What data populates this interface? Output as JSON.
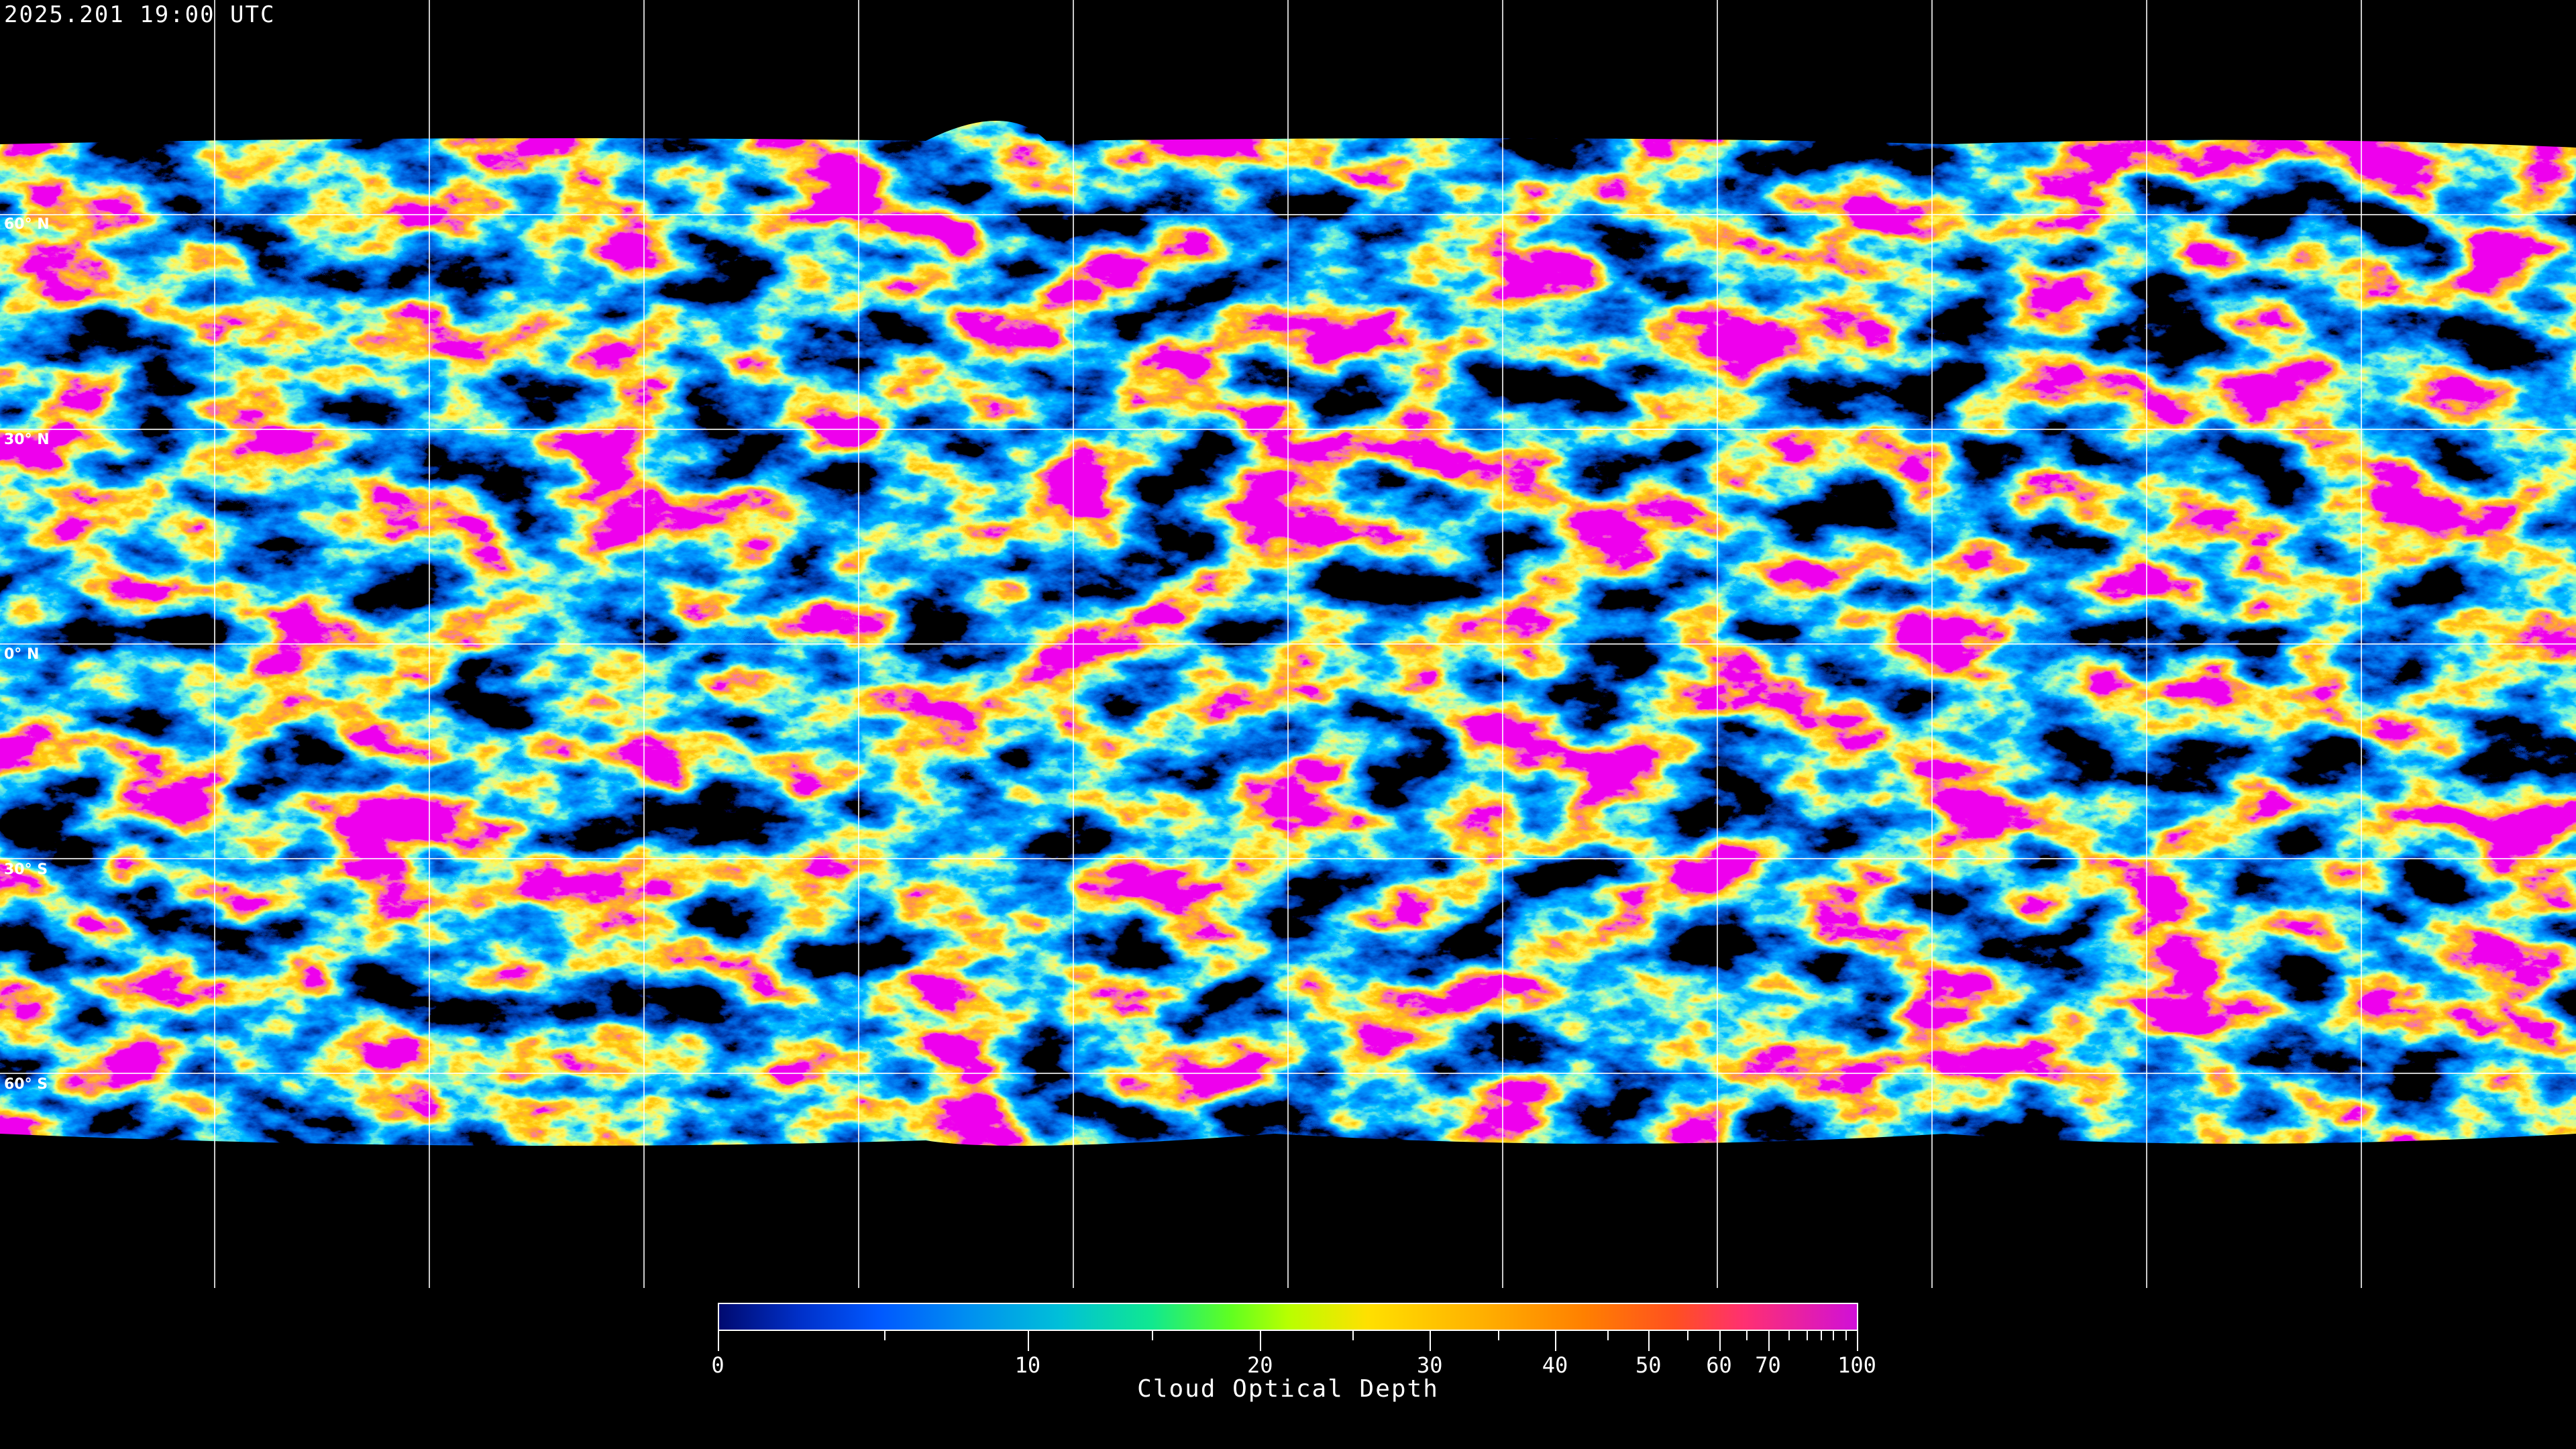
{
  "header": {
    "timestamp": "2025.201 19:00 UTC"
  },
  "map": {
    "projection": "equirectangular",
    "grid_spacing_degrees": 30,
    "latitude_labels": [
      "60° N",
      "30° N",
      "0° N",
      "30° S",
      "60° S"
    ],
    "background_color": "#000000",
    "gridline_color": "#ffffff",
    "coastline_color": "#ffffff"
  },
  "colorbar": {
    "title": "Cloud Optical Depth",
    "range": [
      0,
      100
    ],
    "tick_labels": [
      "0",
      "10",
      "20",
      "30",
      "40",
      "50",
      "60",
      "70",
      "100"
    ],
    "minor_ticks": [
      5,
      15,
      25,
      35,
      45,
      55,
      65,
      75,
      80,
      85,
      90,
      95
    ],
    "colors": [
      "#000a70",
      "#0058ff",
      "#00c0d8",
      "#60ff20",
      "#ffe000",
      "#ff8000",
      "#ff3070",
      "#d010d8"
    ]
  }
}
